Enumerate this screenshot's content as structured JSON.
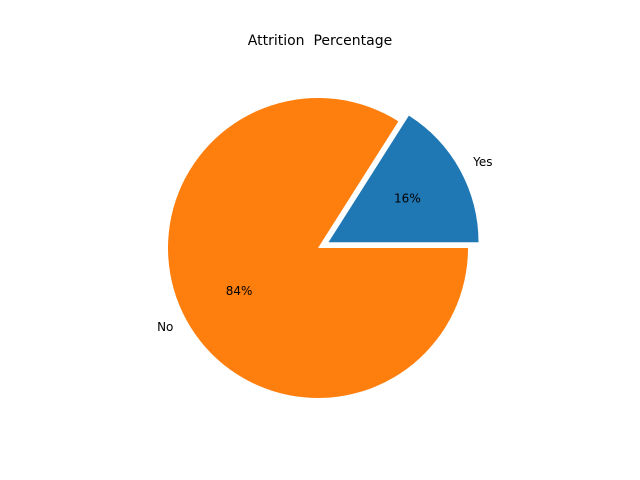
{
  "chart_data": {
    "type": "pie",
    "title": "Attrition  Percentage",
    "slices": [
      {
        "label": "Yes",
        "value": 16,
        "pct_label": "16%",
        "color": "#1f77b4",
        "exploded": true
      },
      {
        "label": "No",
        "value": 84,
        "pct_label": "84%",
        "color": "#ff7f0e",
        "exploded": false
      }
    ],
    "start_angle": 0,
    "direction": "counterclockwise"
  }
}
